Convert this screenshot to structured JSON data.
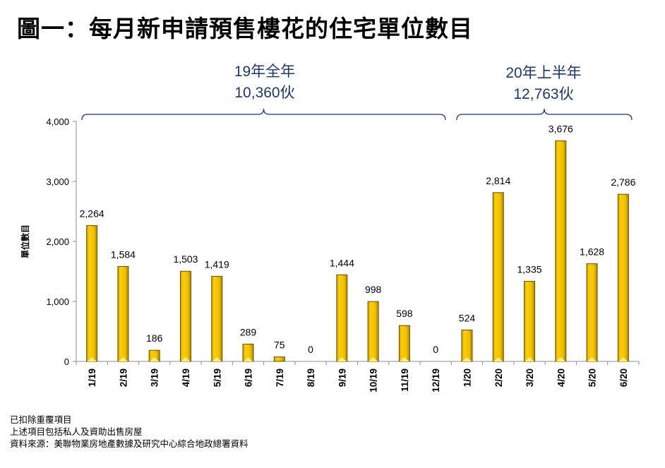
{
  "chart_data": {
    "type": "bar",
    "title": "圖一：每月新申請預售樓花的住宅單位數目",
    "xlabel": "",
    "ylabel": "單位數目",
    "ylim": [
      0,
      4000
    ],
    "yticks": [
      0,
      1000,
      2000,
      3000,
      4000
    ],
    "ytick_labels": [
      "0",
      "1,000",
      "2,000",
      "3,000",
      "4,000"
    ],
    "grid": false,
    "categories": [
      "1/19",
      "2/19",
      "3/19",
      "4/19",
      "5/19",
      "6/19",
      "7/19",
      "8/19",
      "9/19",
      "10/19",
      "11/19",
      "12/19",
      "1/20",
      "2/20",
      "3/20",
      "4/20",
      "5/20",
      "6/20"
    ],
    "values": [
      2264,
      1584,
      186,
      1503,
      1419,
      289,
      75,
      0,
      1444,
      998,
      598,
      0,
      524,
      2814,
      1335,
      3676,
      1628,
      2786
    ],
    "value_labels": [
      "2,264",
      "1,584",
      "186",
      "1,503",
      "1,419",
      "289",
      "75",
      "0",
      "1,444",
      "998",
      "598",
      "0",
      "524",
      "2,814",
      "1,335",
      "3,676",
      "1,628",
      "2,786"
    ],
    "bar_color": "#f2c200",
    "annotations": [
      {
        "line1": "19年全年",
        "line2": "10,360伙",
        "from": "1/19",
        "to": "12/19"
      },
      {
        "line1": "20年上半年",
        "line2": "12,763伙",
        "from": "1/20",
        "to": "6/20"
      }
    ],
    "annotation_color": "#1f3864"
  },
  "notes": [
    "已扣除重覆項目",
    "上述項目包括私人及資助出售房屋",
    "資料來源：美聯物業房地產數據及研究中心綜合地政總署資料"
  ]
}
